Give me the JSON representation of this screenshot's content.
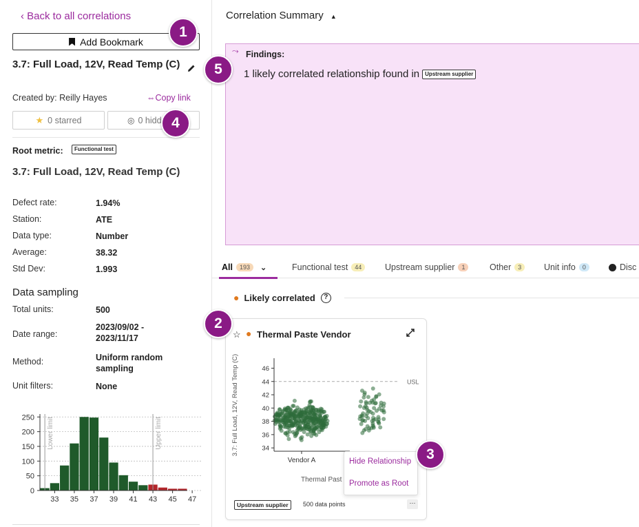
{
  "sidebar": {
    "back_link": "‹  Back to all correlations",
    "bookmark_label": "Add Bookmark",
    "metric_title": "3.7: Full Load, 12V, Read Temp (C)",
    "created_by": "Created by: Reilly Hayes",
    "copy_link": "Copy link",
    "starred_label": "0 starred",
    "hidden_label": "0 hidden",
    "root_metric_label": "Root metric:",
    "root_metric_tag": "Functional test",
    "root_title": "3.7: Full Load, 12V, Read Temp (C)",
    "details": [
      {
        "label": "Defect rate:",
        "value": "1.94%"
      },
      {
        "label": "Station:",
        "value": "ATE"
      },
      {
        "label": "Data type:",
        "value": "Number"
      },
      {
        "label": "Average:",
        "value": "38.32"
      },
      {
        "label": "Std Dev:",
        "value": "1.993"
      }
    ],
    "sampling_heading": "Data sampling",
    "sampling": [
      {
        "label": "Total units:",
        "value": "500"
      },
      {
        "label": "Date range:",
        "value": "2023/09/02 - 2023/11/17"
      },
      {
        "label": "Method:",
        "value": "Uniform random sampling"
      },
      {
        "label": "Unit filters:",
        "value": "None"
      }
    ]
  },
  "main": {
    "title": "Correlation Summary",
    "findings_label": "Findings:",
    "findings_text": "1 likely correlated relationship found in",
    "findings_tag": "Upstream supplier",
    "tabs": [
      {
        "label": "All",
        "count": "193",
        "color": "#f7d9b8"
      },
      {
        "label": "Functional test",
        "count": "44",
        "color": "#f7eeb8"
      },
      {
        "label": "Upstream supplier",
        "count": "1",
        "color": "#f7d0b8"
      },
      {
        "label": "Other",
        "count": "3",
        "color": "#f7eeb8"
      },
      {
        "label": "Unit info",
        "count": "0",
        "color": "#cfe8f7"
      },
      {
        "label": "Disc"
      }
    ],
    "likely_heading": "Likely correlated",
    "card": {
      "title": "Thermal Paste Vendor",
      "footer_tag": "Upstream supplier",
      "points": "500 data points",
      "more": "···"
    },
    "menu": [
      "Hide Relationship",
      "Promote as Root"
    ]
  },
  "markers": [
    "1",
    "2",
    "3",
    "4",
    "5"
  ],
  "chart_data": [
    {
      "type": "bar",
      "title": "",
      "x_tick_labels": [
        "33",
        "35",
        "37",
        "39",
        "41",
        "43",
        "45",
        "47"
      ],
      "y_ticks": [
        "0",
        "50",
        "100",
        "150",
        "200",
        "250"
      ],
      "ylim": [
        0,
        260
      ],
      "bins": [
        32,
        33,
        34,
        35,
        36,
        37,
        38,
        39,
        40,
        41,
        42,
        43,
        44,
        45,
        46
      ],
      "values": [
        8,
        25,
        85,
        160,
        250,
        248,
        180,
        95,
        52,
        30,
        18,
        20,
        10,
        6,
        6
      ],
      "out_of_spec_from_bin": 43,
      "annotations": [
        "Lower limit",
        "Upper limit"
      ],
      "limits": [
        32.5,
        43.5
      ],
      "colors": {
        "in_spec": "#1f5a2a",
        "out_of_spec": "#b3262b"
      }
    },
    {
      "type": "scatter",
      "title": "",
      "ylabel": "3.7: Full Load, 12V, Read Temp (C)",
      "xlabel": "Thermal Past",
      "categories": [
        "Vendor A",
        ""
      ],
      "y_ticks": [
        "34",
        "36",
        "38",
        "40",
        "42",
        "44",
        "46"
      ],
      "ylim": [
        33.5,
        47.5
      ],
      "usl": 44,
      "usl_label": "USL",
      "series": [
        {
          "category": "Vendor A",
          "center": 38.3,
          "spread": 1.9,
          "count": 380
        },
        {
          "category": "",
          "center": 39.5,
          "spread": 3.2,
          "count": 70
        }
      ],
      "colors": {
        "in_spec": "#2d6b3a",
        "out_of_spec": "#e2868f"
      }
    }
  ]
}
